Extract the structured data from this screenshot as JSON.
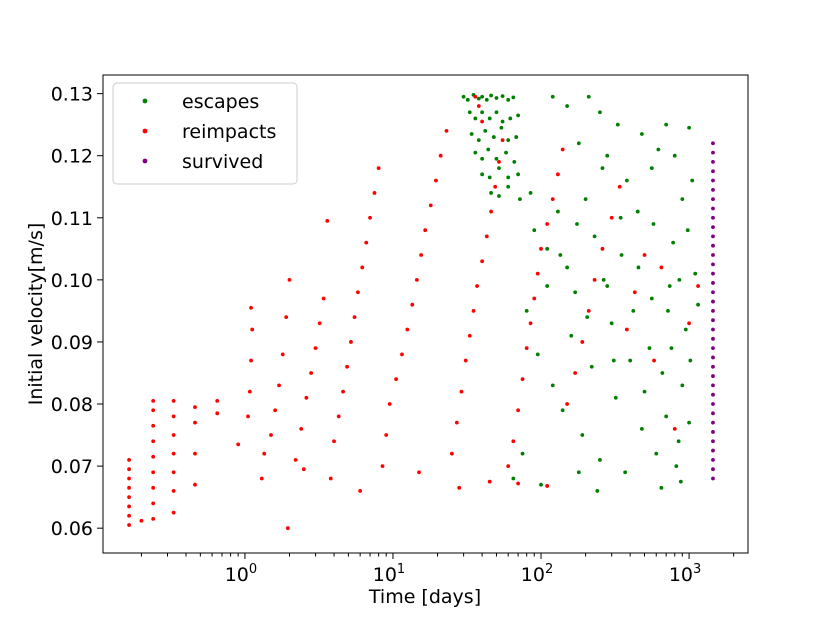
{
  "chart_data": {
    "type": "scatter",
    "title": "",
    "xlabel": "Time [days]",
    "ylabel": "Initial velocity[m/s]",
    "x_scale": "log",
    "xlim": [
      0.11,
      2500
    ],
    "ylim": [
      0.056,
      0.133
    ],
    "x_ticks": [
      {
        "value": 1,
        "base": "10",
        "exp": "0"
      },
      {
        "value": 10,
        "base": "10",
        "exp": "1"
      },
      {
        "value": 100,
        "base": "10",
        "exp": "2"
      },
      {
        "value": 1000,
        "base": "10",
        "exp": "3"
      }
    ],
    "y_ticks": [
      {
        "value": 0.06,
        "label": "0.06"
      },
      {
        "value": 0.07,
        "label": "0.07"
      },
      {
        "value": 0.08,
        "label": "0.08"
      },
      {
        "value": 0.09,
        "label": "0.09"
      },
      {
        "value": 0.1,
        "label": "0.10"
      },
      {
        "value": 0.11,
        "label": "0.11"
      },
      {
        "value": 0.12,
        "label": "0.12"
      },
      {
        "value": 0.13,
        "label": "0.13"
      }
    ],
    "grid": false,
    "legend_position": "top-left",
    "series": [
      {
        "name": "escapes",
        "color": "#008000",
        "points": [
          [
            30,
            0.1295
          ],
          [
            32,
            0.129
          ],
          [
            35,
            0.1298
          ],
          [
            38,
            0.1292
          ],
          [
            40,
            0.1295
          ],
          [
            43,
            0.129
          ],
          [
            46,
            0.1297
          ],
          [
            50,
            0.1293
          ],
          [
            55,
            0.1296
          ],
          [
            60,
            0.129
          ],
          [
            65,
            0.1294
          ],
          [
            33,
            0.127
          ],
          [
            36,
            0.126
          ],
          [
            40,
            0.127
          ],
          [
            45,
            0.126
          ],
          [
            50,
            0.127
          ],
          [
            55,
            0.1255
          ],
          [
            62,
            0.126
          ],
          [
            70,
            0.1265
          ],
          [
            34,
            0.1235
          ],
          [
            38,
            0.1225
          ],
          [
            42,
            0.124
          ],
          [
            48,
            0.123
          ],
          [
            54,
            0.1245
          ],
          [
            60,
            0.1225
          ],
          [
            68,
            0.123
          ],
          [
            36,
            0.1205
          ],
          [
            40,
            0.1195
          ],
          [
            44,
            0.121
          ],
          [
            50,
            0.1195
          ],
          [
            58,
            0.1205
          ],
          [
            66,
            0.119
          ],
          [
            40,
            0.117
          ],
          [
            45,
            0.1165
          ],
          [
            52,
            0.118
          ],
          [
            60,
            0.1165
          ],
          [
            70,
            0.117
          ],
          [
            46,
            0.114
          ],
          [
            52,
            0.1135
          ],
          [
            60,
            0.115
          ],
          [
            72,
            0.113
          ],
          [
            85,
            0.114
          ],
          [
            90,
            0.108
          ],
          [
            110,
            0.105
          ],
          [
            130,
            0.111
          ],
          [
            150,
            0.102
          ],
          [
            170,
            0.098
          ],
          [
            200,
            0.113
          ],
          [
            230,
            0.107
          ],
          [
            260,
            0.118
          ],
          [
            300,
            0.093
          ],
          [
            350,
            0.104
          ],
          [
            400,
            0.087
          ],
          [
            450,
            0.111
          ],
          [
            500,
            0.082
          ],
          [
            560,
            0.097
          ],
          [
            620,
            0.121
          ],
          [
            700,
            0.078
          ],
          [
            780,
            0.106
          ],
          [
            850,
            0.074
          ],
          [
            950,
            0.092
          ],
          [
            1050,
            0.116
          ],
          [
            1100,
            0.101
          ],
          [
            80,
            0.095
          ],
          [
            95,
            0.088
          ],
          [
            120,
            0.083
          ],
          [
            140,
            0.079
          ],
          [
            160,
            0.091
          ],
          [
            190,
            0.075
          ],
          [
            220,
            0.086
          ],
          [
            250,
            0.071
          ],
          [
            280,
            0.099
          ],
          [
            320,
            0.081
          ],
          [
            370,
            0.069
          ],
          [
            420,
            0.095
          ],
          [
            480,
            0.076
          ],
          [
            540,
            0.089
          ],
          [
            600,
            0.072
          ],
          [
            660,
            0.085
          ],
          [
            740,
            0.099
          ],
          [
            820,
            0.07
          ],
          [
            900,
            0.083
          ],
          [
            980,
            0.108
          ],
          [
            1000,
            0.077
          ],
          [
            65,
            0.068
          ],
          [
            75,
            0.072
          ],
          [
            100,
            0.067
          ],
          [
            180,
            0.069
          ],
          [
            240,
            0.066
          ],
          [
            650,
            0.0665
          ],
          [
            880,
            0.0675
          ],
          [
            120,
            0.1295
          ],
          [
            150,
            0.128
          ],
          [
            210,
            0.1295
          ],
          [
            250,
            0.127
          ],
          [
            330,
            0.125
          ],
          [
            480,
            0.1235
          ],
          [
            700,
            0.125
          ],
          [
            180,
            0.122
          ],
          [
            280,
            0.12
          ],
          [
            380,
            0.116
          ],
          [
            560,
            0.118
          ],
          [
            800,
            0.12
          ],
          [
            1000,
            0.1245
          ],
          [
            900,
            0.113
          ],
          [
            110,
            0.099
          ],
          [
            135,
            0.104
          ],
          [
            175,
            0.109
          ],
          [
            205,
            0.094
          ],
          [
            265,
            0.1
          ],
          [
            345,
            0.11
          ],
          [
            455,
            0.102
          ],
          [
            575,
            0.109
          ],
          [
            720,
            0.095
          ],
          [
            860,
            0.1
          ],
          [
            1020,
            0.087
          ],
          [
            1150,
            0.096
          ],
          [
            760,
            0.089
          ],
          [
            310,
            0.087
          ]
        ]
      },
      {
        "name": "reimpacts",
        "color": "#ff0000",
        "points": [
          [
            0.165,
            0.0605
          ],
          [
            0.165,
            0.062
          ],
          [
            0.165,
            0.0635
          ],
          [
            0.165,
            0.065
          ],
          [
            0.165,
            0.0665
          ],
          [
            0.165,
            0.068
          ],
          [
            0.165,
            0.0695
          ],
          [
            0.165,
            0.071
          ],
          [
            0.24,
            0.0615
          ],
          [
            0.24,
            0.064
          ],
          [
            0.24,
            0.0665
          ],
          [
            0.24,
            0.069
          ],
          [
            0.24,
            0.0715
          ],
          [
            0.24,
            0.074
          ],
          [
            0.24,
            0.0765
          ],
          [
            0.24,
            0.079
          ],
          [
            0.24,
            0.0805
          ],
          [
            0.33,
            0.0625
          ],
          [
            0.33,
            0.066
          ],
          [
            0.33,
            0.069
          ],
          [
            0.33,
            0.072
          ],
          [
            0.33,
            0.075
          ],
          [
            0.33,
            0.078
          ],
          [
            0.33,
            0.0805
          ],
          [
            0.46,
            0.067
          ],
          [
            0.46,
            0.072
          ],
          [
            0.46,
            0.077
          ],
          [
            0.46,
            0.0795
          ],
          [
            0.65,
            0.0785
          ],
          [
            0.65,
            0.0805
          ],
          [
            0.9,
            0.0735
          ],
          [
            1.05,
            0.078
          ],
          [
            1.08,
            0.082
          ],
          [
            1.1,
            0.087
          ],
          [
            1.12,
            0.092
          ],
          [
            1.1,
            0.0955
          ],
          [
            1.3,
            0.068
          ],
          [
            1.35,
            0.072
          ],
          [
            1.5,
            0.075
          ],
          [
            1.6,
            0.079
          ],
          [
            1.7,
            0.083
          ],
          [
            1.8,
            0.088
          ],
          [
            1.9,
            0.094
          ],
          [
            1.95,
            0.06
          ],
          [
            2.0,
            0.1
          ],
          [
            2.2,
            0.071
          ],
          [
            2.4,
            0.076
          ],
          [
            2.6,
            0.081
          ],
          [
            2.8,
            0.085
          ],
          [
            3.0,
            0.089
          ],
          [
            3.2,
            0.093
          ],
          [
            3.4,
            0.097
          ],
          [
            3.6,
            0.1095
          ],
          [
            3.8,
            0.068
          ],
          [
            4.0,
            0.074
          ],
          [
            4.3,
            0.078
          ],
          [
            4.6,
            0.082
          ],
          [
            4.9,
            0.086
          ],
          [
            5.2,
            0.09
          ],
          [
            5.5,
            0.094
          ],
          [
            5.8,
            0.098
          ],
          [
            6.2,
            0.102
          ],
          [
            6.6,
            0.106
          ],
          [
            7.0,
            0.11
          ],
          [
            7.5,
            0.114
          ],
          [
            8.0,
            0.118
          ],
          [
            8.5,
            0.07
          ],
          [
            9.0,
            0.075
          ],
          [
            9.5,
            0.08
          ],
          [
            10.5,
            0.084
          ],
          [
            11.5,
            0.088
          ],
          [
            12.5,
            0.092
          ],
          [
            13.5,
            0.096
          ],
          [
            14.5,
            0.1
          ],
          [
            15.5,
            0.104
          ],
          [
            16.5,
            0.108
          ],
          [
            18,
            0.112
          ],
          [
            19.5,
            0.116
          ],
          [
            21,
            0.12
          ],
          [
            23,
            0.124
          ],
          [
            25,
            0.072
          ],
          [
            27,
            0.077
          ],
          [
            29,
            0.082
          ],
          [
            31,
            0.087
          ],
          [
            33,
            0.091
          ],
          [
            35,
            0.095
          ],
          [
            37,
            0.099
          ],
          [
            40,
            0.103
          ],
          [
            43,
            0.107
          ],
          [
            46,
            0.111
          ],
          [
            49,
            0.115
          ],
          [
            52,
            0.119
          ],
          [
            55,
            0.1225
          ],
          [
            40,
            0.1255
          ],
          [
            38,
            0.128
          ],
          [
            36,
            0.1295
          ],
          [
            60,
            0.07
          ],
          [
            65,
            0.074
          ],
          [
            70,
            0.079
          ],
          [
            75,
            0.084
          ],
          [
            80,
            0.089
          ],
          [
            85,
            0.093
          ],
          [
            90,
            0.097
          ],
          [
            95,
            0.101
          ],
          [
            100,
            0.105
          ],
          [
            110,
            0.109
          ],
          [
            120,
            0.113
          ],
          [
            130,
            0.117
          ],
          [
            140,
            0.121
          ],
          [
            150,
            0.08
          ],
          [
            170,
            0.085
          ],
          [
            190,
            0.09
          ],
          [
            210,
            0.095
          ],
          [
            230,
            0.1
          ],
          [
            260,
            0.105
          ],
          [
            300,
            0.11
          ],
          [
            340,
            0.115
          ],
          [
            380,
            0.092
          ],
          [
            430,
            0.098
          ],
          [
            500,
            0.104
          ],
          [
            580,
            0.087
          ],
          [
            650,
            0.102
          ],
          [
            800,
            0.076
          ],
          [
            1000,
            0.093
          ],
          [
            1150,
            0.099
          ],
          [
            6,
            0.066
          ],
          [
            15,
            0.069
          ],
          [
            28,
            0.0665
          ],
          [
            45,
            0.0675
          ],
          [
            70,
            0.0672
          ],
          [
            110,
            0.0668
          ],
          [
            0.2,
            0.0612
          ],
          [
            2.5,
            0.0695
          ]
        ]
      },
      {
        "name": "survived",
        "color": "#800080",
        "points": [
          [
            1450,
            0.068
          ],
          [
            1450,
            0.0695
          ],
          [
            1450,
            0.071
          ],
          [
            1450,
            0.0725
          ],
          [
            1450,
            0.074
          ],
          [
            1450,
            0.0755
          ],
          [
            1450,
            0.077
          ],
          [
            1450,
            0.0785
          ],
          [
            1450,
            0.08
          ],
          [
            1450,
            0.0815
          ],
          [
            1450,
            0.083
          ],
          [
            1450,
            0.0845
          ],
          [
            1450,
            0.086
          ],
          [
            1450,
            0.0875
          ],
          [
            1450,
            0.089
          ],
          [
            1450,
            0.0905
          ],
          [
            1450,
            0.092
          ],
          [
            1450,
            0.0935
          ],
          [
            1450,
            0.095
          ],
          [
            1450,
            0.0965
          ],
          [
            1450,
            0.098
          ],
          [
            1450,
            0.0995
          ],
          [
            1450,
            0.101
          ],
          [
            1450,
            0.1025
          ],
          [
            1450,
            0.104
          ],
          [
            1450,
            0.1055
          ],
          [
            1450,
            0.107
          ],
          [
            1450,
            0.1085
          ],
          [
            1450,
            0.11
          ],
          [
            1450,
            0.1115
          ],
          [
            1450,
            0.113
          ],
          [
            1450,
            0.1145
          ],
          [
            1450,
            0.116
          ],
          [
            1450,
            0.1175
          ],
          [
            1450,
            0.119
          ],
          [
            1450,
            0.1205
          ],
          [
            1450,
            0.122
          ]
        ]
      }
    ]
  }
}
